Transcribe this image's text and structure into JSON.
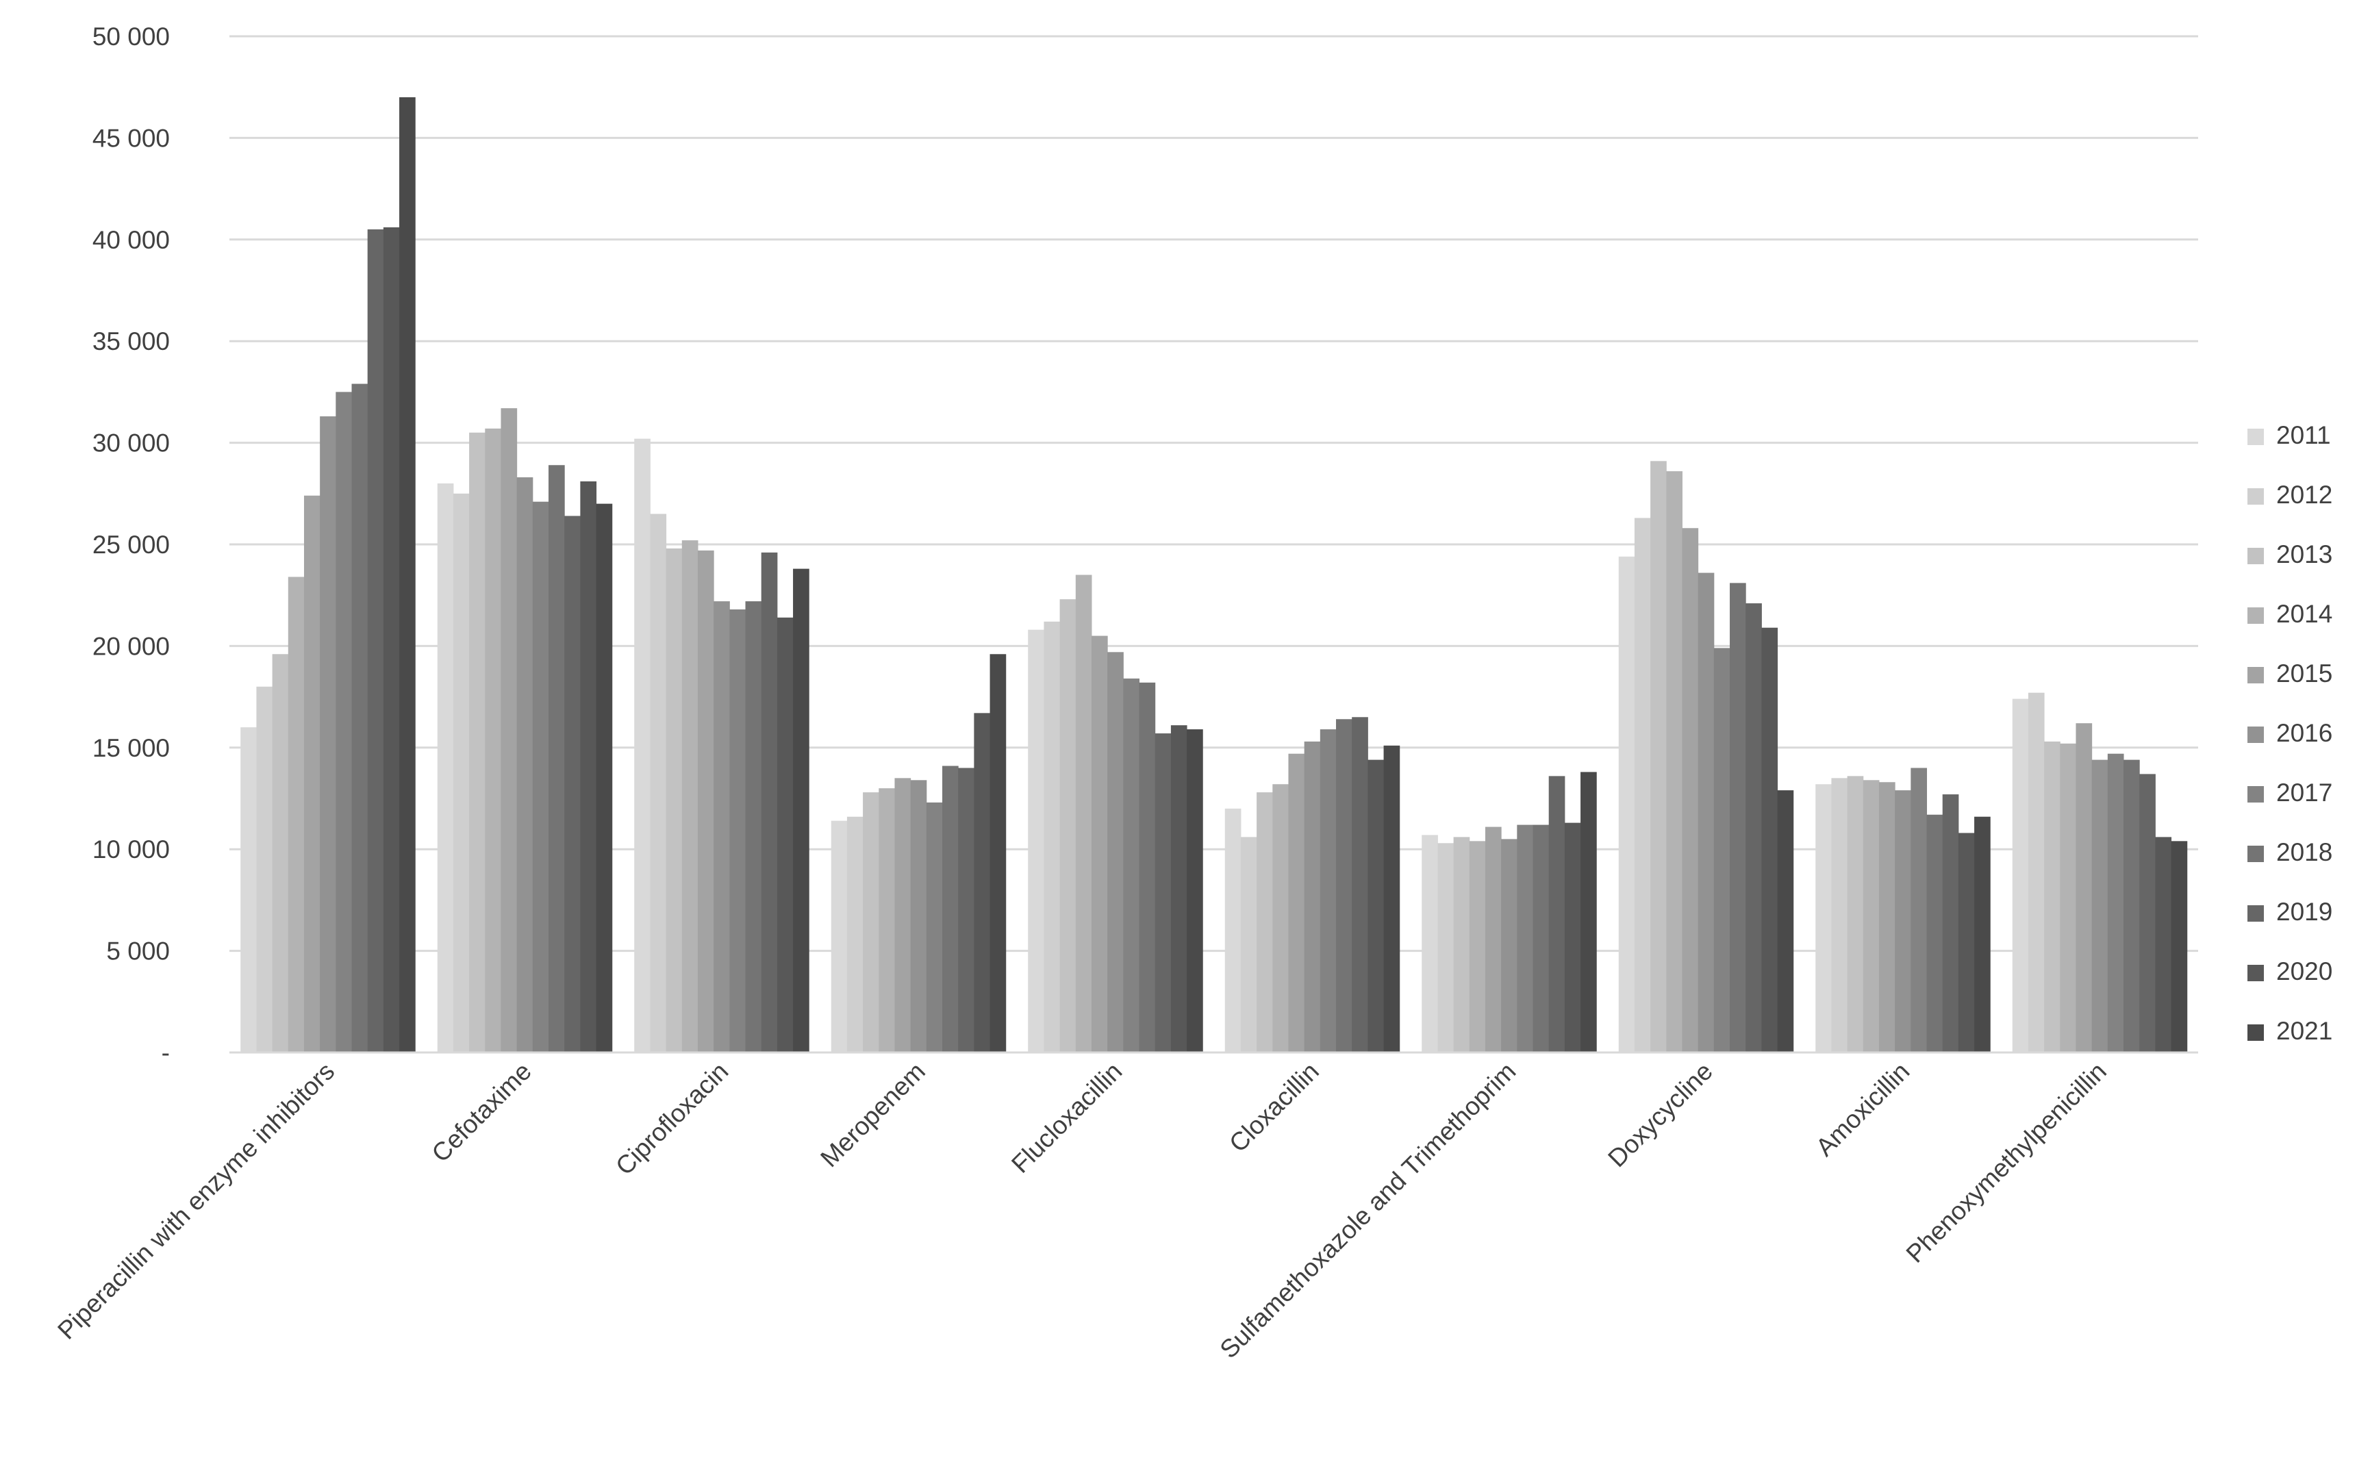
{
  "chart_data": {
    "type": "bar",
    "title": "",
    "xlabel": "",
    "ylabel": "",
    "ylim": [
      0,
      50000
    ],
    "yticks": [
      0,
      5000,
      10000,
      15000,
      20000,
      25000,
      30000,
      35000,
      40000,
      45000,
      50000
    ],
    "ytick_labels": [
      "-",
      "5 000",
      "10 000",
      "15 000",
      "20 000",
      "25 000",
      "30 000",
      "35 000",
      "40 000",
      "45 000",
      "50 000"
    ],
    "grid": true,
    "legend_position": "right",
    "categories": [
      "Piperacillin with enzyme inhibitors",
      "Cefotaxime",
      "Ciprofloxacin",
      "Meropenem",
      "Flucloxacillin",
      "Cloxacillin",
      "Sulfamethoxazole and Trimethoprim",
      "Doxycycline",
      "Amoxicillin",
      "Phenoxymethylpenicillin"
    ],
    "series": [
      {
        "name": "2011",
        "color": "#d9d9d9",
        "values": [
          16000,
          28000,
          30200,
          11400,
          20800,
          12000,
          10700,
          24400,
          13200,
          17400
        ]
      },
      {
        "name": "2012",
        "color": "#cfcfcf",
        "values": [
          18000,
          27500,
          26500,
          11600,
          21200,
          10600,
          10300,
          26300,
          13500,
          17700
        ]
      },
      {
        "name": "2013",
        "color": "#c2c2c2",
        "values": [
          19600,
          30500,
          24800,
          12800,
          22300,
          12800,
          10600,
          29100,
          13600,
          15300
        ]
      },
      {
        "name": "2014",
        "color": "#b3b3b3",
        "values": [
          23400,
          30700,
          25200,
          13000,
          23500,
          13200,
          10400,
          28600,
          13400,
          15200
        ]
      },
      {
        "name": "2015",
        "color": "#a3a3a3",
        "values": [
          27400,
          31700,
          24700,
          13500,
          20500,
          14700,
          11100,
          25800,
          13300,
          16200
        ]
      },
      {
        "name": "2016",
        "color": "#929292",
        "values": [
          31300,
          28300,
          22200,
          13400,
          19700,
          15300,
          10500,
          23600,
          12900,
          14400
        ]
      },
      {
        "name": "2017",
        "color": "#838383",
        "values": [
          32500,
          27100,
          21800,
          12300,
          18400,
          15900,
          11200,
          19900,
          14000,
          14700
        ]
      },
      {
        "name": "2018",
        "color": "#747474",
        "values": [
          32900,
          28900,
          22200,
          14100,
          18200,
          16400,
          11200,
          23100,
          11700,
          14400
        ]
      },
      {
        "name": "2019",
        "color": "#666666",
        "values": [
          40500,
          26400,
          24600,
          14000,
          15700,
          16500,
          13600,
          22100,
          12700,
          13700
        ]
      },
      {
        "name": "2020",
        "color": "#585858",
        "values": [
          40600,
          28100,
          21400,
          16700,
          16100,
          14400,
          11300,
          20900,
          10800,
          10600
        ]
      },
      {
        "name": "2021",
        "color": "#4a4a4a",
        "values": [
          47000,
          27000,
          23800,
          19600,
          15900,
          15100,
          13800,
          12900,
          11600,
          10400
        ]
      }
    ]
  }
}
